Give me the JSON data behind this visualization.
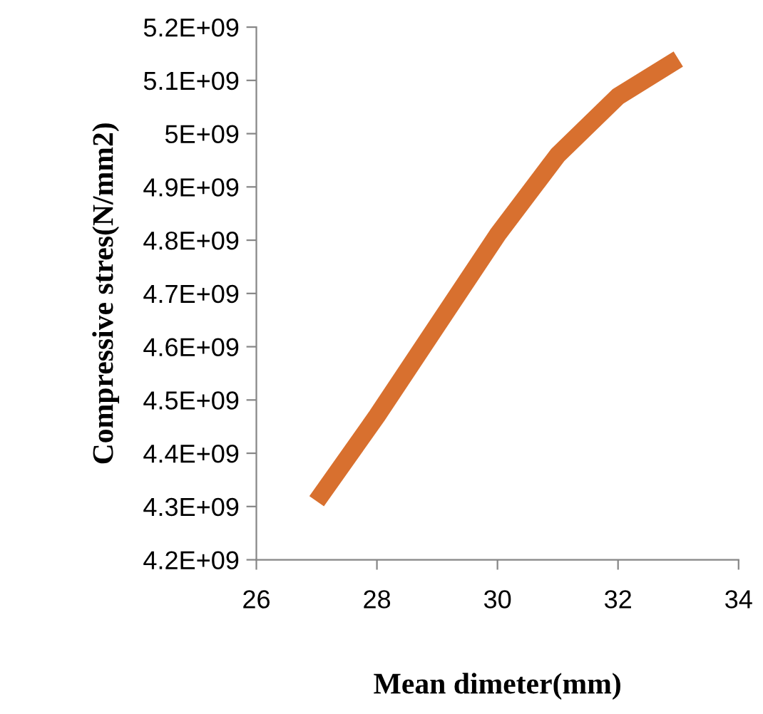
{
  "chart_data": {
    "type": "line",
    "xlabel": "Mean dimeter(mm)",
    "ylabel": "Compressive stres(N/mm2)",
    "x": [
      27,
      28,
      29,
      30,
      31,
      32,
      33
    ],
    "series": [
      {
        "color": "#d8702f",
        "values": [
          4310000000,
          4470000000,
          4640000000,
          4810000000,
          4960000000,
          5070000000,
          5140000000
        ]
      }
    ],
    "xlim": [
      26,
      34
    ],
    "xticks": [
      26,
      28,
      30,
      32,
      34
    ],
    "ylim": [
      4200000000,
      5200000000
    ],
    "yticks": [
      {
        "value": 4200000000,
        "label": "4.2E+09"
      },
      {
        "value": 4300000000,
        "label": "4.3E+09"
      },
      {
        "value": 4400000000,
        "label": "4.4E+09"
      },
      {
        "value": 4500000000,
        "label": "4.5E+09"
      },
      {
        "value": 4600000000,
        "label": "4.6E+09"
      },
      {
        "value": 4700000000,
        "label": "4.7E+09"
      },
      {
        "value": 4800000000,
        "label": "4.8E+09"
      },
      {
        "value": 4900000000,
        "label": "4.9E+09"
      },
      {
        "value": 5000000000,
        "label": "5E+09"
      },
      {
        "value": 5100000000,
        "label": "5.1E+09"
      },
      {
        "value": 5200000000,
        "label": "5.2E+09"
      }
    ],
    "grid": false,
    "marker": "none",
    "line_style": "solid"
  }
}
